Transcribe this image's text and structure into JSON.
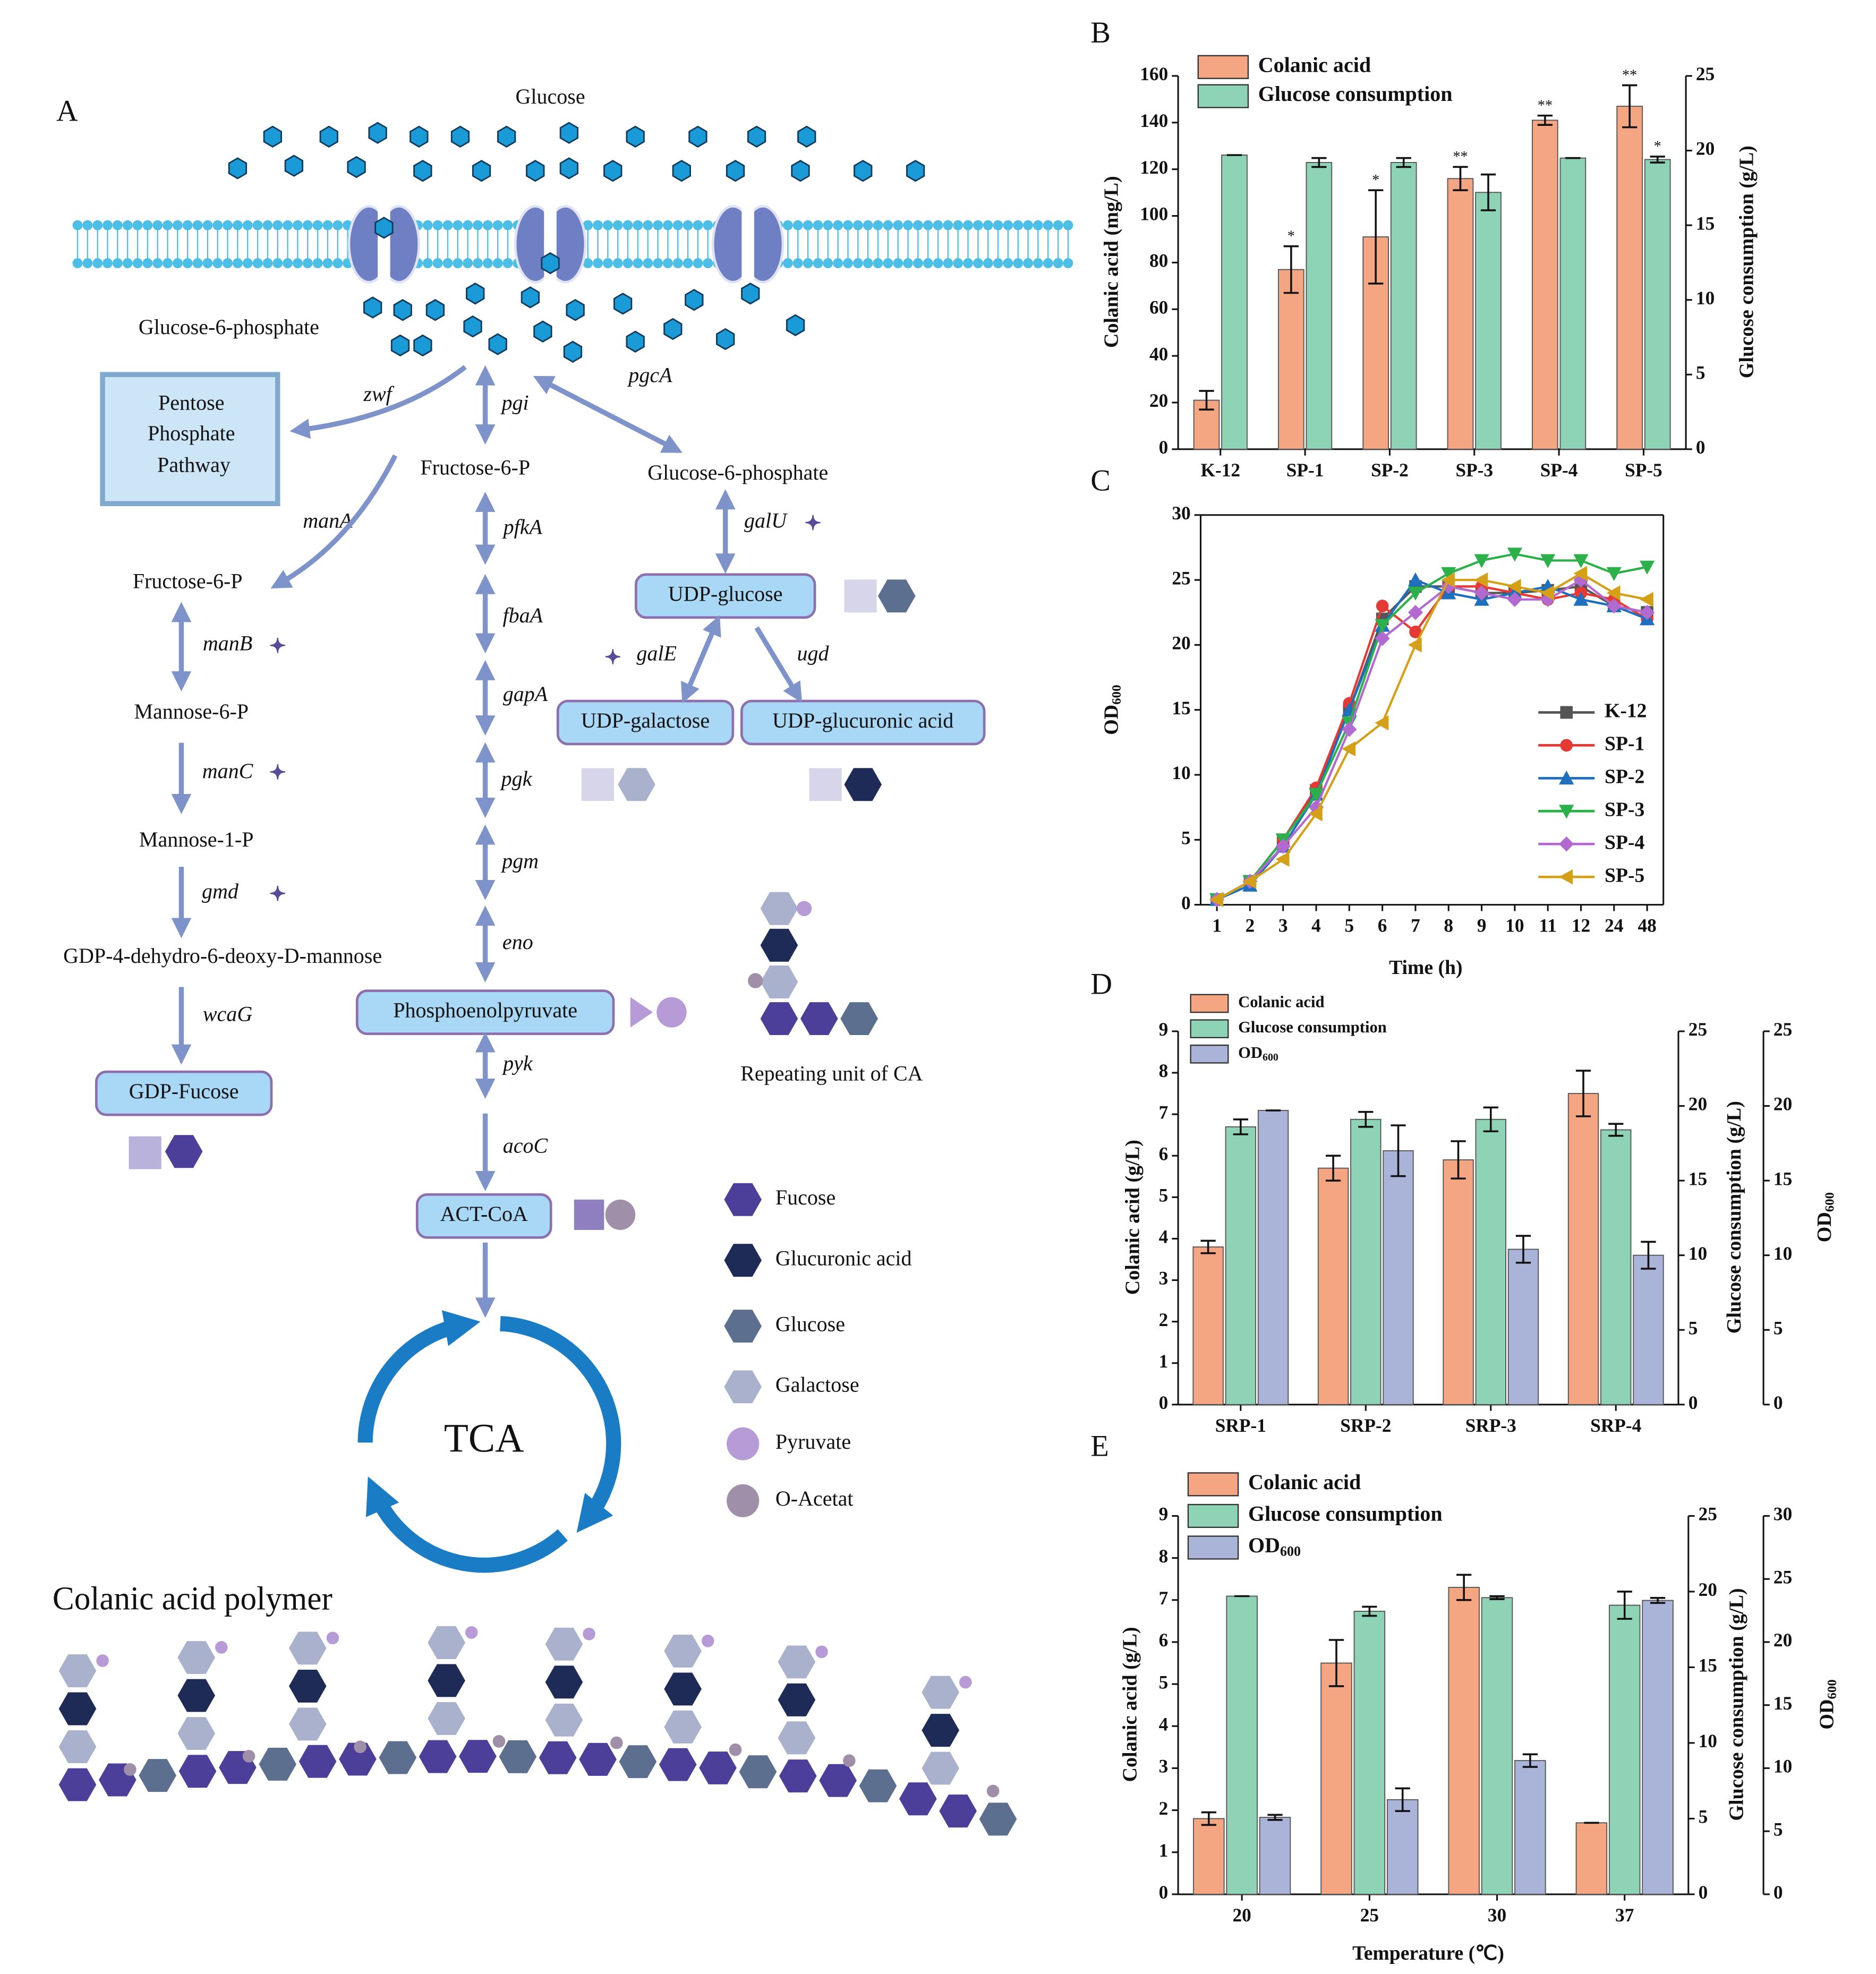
{
  "diagram": {
    "panel_label": "A",
    "outside": "Glucose",
    "inside": "Glucose-6-phosphate",
    "pathway_box": [
      "Pentose",
      "Phosphate",
      "Pathway"
    ],
    "nodes": [
      "Fructose-6-P",
      "Glucose-6-phosphate",
      "Fructose-6-P",
      "Mannose-6-P",
      "Mannose-1-P",
      "GDP-4-dehydro-6-deoxy-D-mannose",
      "GDP-Fucose",
      "UDP-glucose",
      "UDP-galactose",
      "UDP-glucuronic acid",
      "Phosphoenolpyruvate",
      "ACT-CoA"
    ],
    "genes": [
      {
        "name": "zwf",
        "color": "#222222"
      },
      {
        "name": "pgi",
        "color": "#222222"
      },
      {
        "name": "pgcA",
        "color": "#222222"
      },
      {
        "name": "manA",
        "color": "#222222"
      },
      {
        "name": "pfkA",
        "color": "#222222"
      },
      {
        "name": "galU",
        "color": "#222222"
      },
      {
        "name": "manB",
        "color": "#c0272d"
      },
      {
        "name": "fbaA",
        "color": "#222222"
      },
      {
        "name": "galE",
        "color": "#222222"
      },
      {
        "name": "ugd",
        "color": "#222222"
      },
      {
        "name": "gapA",
        "color": "#222222"
      },
      {
        "name": "pgk",
        "color": "#222222"
      },
      {
        "name": "manC",
        "color": "#c0272d"
      },
      {
        "name": "pgm",
        "color": "#222222"
      },
      {
        "name": "gmd",
        "color": "#c0272d"
      },
      {
        "name": "eno",
        "color": "#222222"
      },
      {
        "name": "wcaG",
        "color": "#c0272d"
      },
      {
        "name": "pyk",
        "color": "#222222"
      },
      {
        "name": "acoC",
        "color": "#222222"
      }
    ],
    "cycle": "TCA",
    "repeat_label": "Repeating unit of CA",
    "legend": [
      {
        "name": "Fucose",
        "color": "#4b3f9a"
      },
      {
        "name": "Glucuronic acid",
        "color": "#1f2b57"
      },
      {
        "name": "Glucose",
        "color": "#5c6f8f"
      },
      {
        "name": "Galactose",
        "color": "#aab1cc"
      },
      {
        "name": "Pyruvate",
        "color": "#b79bd6"
      },
      {
        "name": "O-Acetat",
        "color": "#a08fa8"
      }
    ],
    "polymer_title": "Colanic acid polymer"
  },
  "chart_data": [
    {
      "panel": "B",
      "type": "bar",
      "categories": [
        "K-12",
        "SP-1",
        "SP-2",
        "SP-3",
        "SP-4",
        "SP-5"
      ],
      "series": [
        {
          "name": "Colanic acid",
          "color": "#f4a582",
          "axis": "y",
          "values": [
            21,
            77,
            91,
            116,
            141,
            147
          ],
          "errors": [
            4,
            10,
            20,
            5,
            2,
            9
          ],
          "labels": [
            null,
            "*",
            "*",
            "**",
            "**",
            "**"
          ]
        },
        {
          "name": "Glucose consumption",
          "color": "#8fd3b6",
          "axis": "y2",
          "values": [
            19.7,
            19.2,
            19.2,
            17.2,
            19.5,
            19.4
          ],
          "errors": [
            0,
            0.3,
            0.3,
            1.2,
            0,
            0.2
          ],
          "labels": [
            null,
            null,
            null,
            null,
            null,
            "*"
          ]
        }
      ],
      "ylabel": "Colanic acid (mg/L)",
      "y2label": "Glucose consumption (g/L)",
      "ylim": [
        0,
        160
      ],
      "yticks": [
        0,
        20,
        40,
        60,
        80,
        100,
        120,
        140,
        160
      ],
      "y2lim": [
        0,
        25
      ],
      "y2ticks": [
        0,
        5,
        10,
        15,
        20,
        25
      ],
      "legend": "upper left"
    },
    {
      "panel": "C",
      "type": "line",
      "categories": [
        "1",
        "2",
        "3",
        "4",
        "5",
        "6",
        "7",
        "8",
        "9",
        "10",
        "11",
        "12",
        "24",
        "48"
      ],
      "series": [
        {
          "name": "K-12",
          "color": "#555555",
          "marker": "square",
          "values": [
            0.4,
            1.8,
            5,
            8.8,
            15,
            22,
            24.5,
            24.5,
            24,
            24,
            24.2,
            24.5,
            23,
            22.5
          ]
        },
        {
          "name": "SP-1",
          "color": "#e53935",
          "marker": "circle",
          "values": [
            0.4,
            1.8,
            5,
            9,
            15.5,
            23,
            21,
            24.5,
            24.5,
            24,
            23.5,
            24,
            23.5,
            22
          ]
        },
        {
          "name": "SP-2",
          "color": "#1f6fbf",
          "marker": "triangle-up",
          "values": [
            0.4,
            1.5,
            4.5,
            8.5,
            15,
            21.5,
            25,
            24,
            23.5,
            24,
            24.5,
            23.5,
            23,
            22
          ]
        },
        {
          "name": "SP-3",
          "color": "#2bb04a",
          "marker": "triangle-down",
          "values": [
            0.4,
            1.8,
            5,
            8.5,
            14,
            21.5,
            24,
            25.5,
            26.5,
            27,
            26.5,
            26.5,
            25.5,
            26
          ]
        },
        {
          "name": "SP-4",
          "color": "#b36ad0",
          "marker": "diamond",
          "values": [
            0.4,
            1.8,
            4.5,
            7.5,
            13.5,
            20.5,
            22.5,
            24.5,
            24,
            23.5,
            23.5,
            25,
            23,
            22.5
          ]
        },
        {
          "name": "SP-5",
          "color": "#d4a017",
          "marker": "triangle-left",
          "values": [
            0.4,
            1.8,
            3.5,
            7,
            12,
            14,
            20,
            25,
            25,
            24.5,
            24,
            25.5,
            24,
            23.5
          ]
        }
      ],
      "xlabel": "Time (h)",
      "ylabel": {
        "text": "OD",
        "subscript": "600"
      },
      "ylim": [
        0,
        30
      ],
      "yticks": [
        0,
        5,
        10,
        15,
        20,
        25,
        30
      ],
      "legend": "center right"
    },
    {
      "panel": "D",
      "type": "bar",
      "categories": [
        "SRP-1",
        "SRP-2",
        "SRP-3",
        "SRP-4"
      ],
      "series": [
        {
          "name": "Colanic acid",
          "color": "#f4a582",
          "axis": "y",
          "values": [
            3.8,
            5.7,
            5.9,
            7.5
          ],
          "errors": [
            0.15,
            0.3,
            0.45,
            0.55
          ]
        },
        {
          "name": "Glucose consumption",
          "color": "#8fd3b6",
          "axis": "y2",
          "values": [
            18.6,
            19.1,
            19.1,
            18.4
          ],
          "errors": [
            0.5,
            0.5,
            0.8,
            0.4
          ]
        },
        {
          "name": "OD",
          "subscript": "600",
          "color": "#a9b4d8",
          "axis": "y3",
          "values": [
            19.7,
            17,
            10.4,
            10
          ],
          "errors": [
            0,
            1.7,
            0.9,
            0.9
          ]
        }
      ],
      "ylabel": "Colanic acid (g/L)",
      "y2label": "Glucose consumption (g/L)",
      "y3label": {
        "text": "OD",
        "subscript": "600"
      },
      "ylim": [
        0,
        9
      ],
      "yticks": [
        0,
        1,
        2,
        3,
        4,
        5,
        6,
        7,
        8,
        9
      ],
      "y2lim": [
        0,
        25
      ],
      "y2ticks": [
        0,
        5,
        10,
        15,
        20,
        25
      ],
      "y3lim": [
        0,
        25
      ],
      "y3ticks": [
        0,
        5,
        10,
        15,
        20,
        25
      ],
      "legend": "upper left"
    },
    {
      "panel": "E",
      "type": "bar",
      "categories": [
        "20",
        "25",
        "30",
        "37"
      ],
      "series": [
        {
          "name": "Colanic acid",
          "color": "#f4a582",
          "axis": "y",
          "values": [
            1.8,
            5.5,
            7.3,
            1.7
          ],
          "errors": [
            0.15,
            0.55,
            0.3,
            0
          ]
        },
        {
          "name": "Glucose consumption",
          "color": "#8fd3b6",
          "axis": "y2",
          "values": [
            19.7,
            18.7,
            19.6,
            19.1
          ],
          "errors": [
            0,
            0.3,
            0.1,
            0.9
          ]
        },
        {
          "name": "OD",
          "subscript": "600",
          "color": "#a9b4d8",
          "axis": "y3",
          "values": [
            6.1,
            7.5,
            10.6,
            23.3
          ],
          "errors": [
            0.2,
            0.9,
            0.5,
            0.2
          ]
        }
      ],
      "xlabel": "Temperature (℃)",
      "ylabel": "Colanic acid (g/L)",
      "y2label": "Glucose consumption (g/L)",
      "y3label": {
        "text": "OD",
        "subscript": "600"
      },
      "ylim": [
        0,
        9
      ],
      "yticks": [
        0,
        1,
        2,
        3,
        4,
        5,
        6,
        7,
        8,
        9
      ],
      "y2lim": [
        0,
        25
      ],
      "y2ticks": [
        0,
        5,
        10,
        15,
        20,
        25
      ],
      "y3lim": [
        0,
        30
      ],
      "y3ticks": [
        0,
        5,
        10,
        15,
        20,
        25,
        30
      ],
      "legend": "upper left"
    }
  ]
}
